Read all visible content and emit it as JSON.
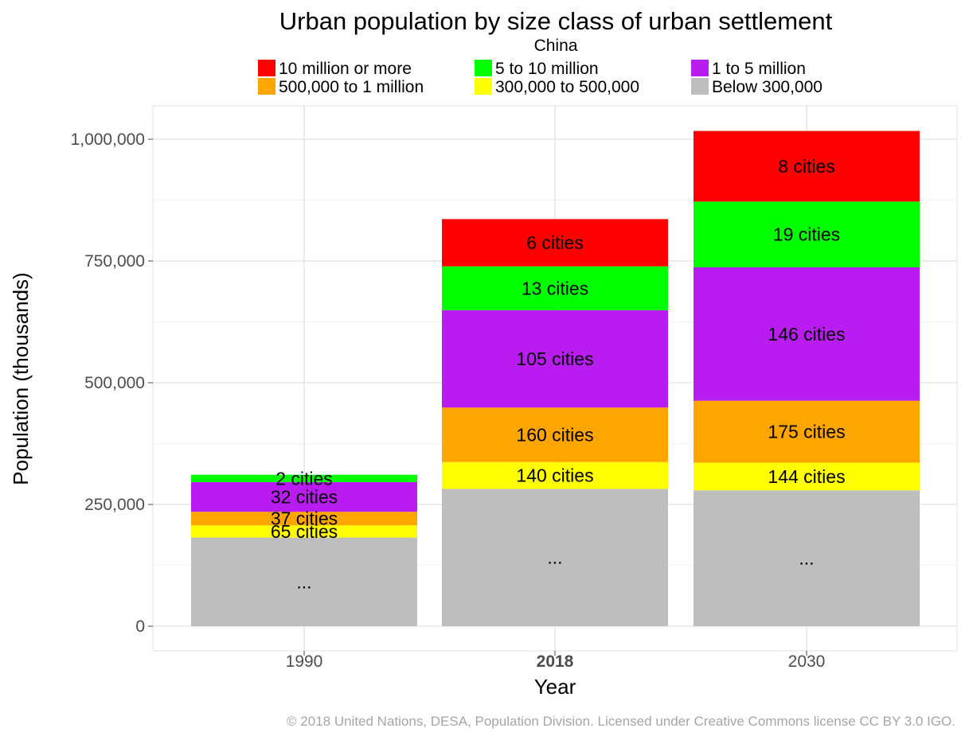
{
  "chart_data": {
    "type": "bar",
    "stacked": true,
    "title": "Urban population by size class of urban settlement",
    "subtitle": "China",
    "xlabel": "Year",
    "ylabel": "Population (thousands)",
    "ylim": [
      0,
      1050000
    ],
    "yticks": [
      0,
      250000,
      500000,
      750000,
      1000000
    ],
    "ytick_labels": [
      "0",
      "250,000",
      "500,000",
      "750,000",
      "1,000,000"
    ],
    "categories": [
      "1990",
      "2018",
      "2030"
    ],
    "highlight_category": "2018",
    "grid": true,
    "legend_position": "top",
    "series": [
      {
        "name": "Below 300,000",
        "color": "#bebebe",
        "values": [
          182000,
          282000,
          279000
        ],
        "labels": [
          "...",
          "...",
          "..."
        ]
      },
      {
        "name": "300,000 to 500,000",
        "color": "#ffff00",
        "values": [
          25000,
          55000,
          57000
        ],
        "labels": [
          "65 cities",
          "140 cities",
          "144 cities"
        ]
      },
      {
        "name": "500,000 to 1 million",
        "color": "#ffa500",
        "values": [
          28000,
          112000,
          127000
        ],
        "labels": [
          "37 cities",
          "160 cities",
          "175 cities"
        ]
      },
      {
        "name": "1 to 5 million",
        "color": "#b81cf0",
        "values": [
          61000,
          200000,
          274000
        ],
        "labels": [
          "32 cities",
          "105 cities",
          "146 cities"
        ]
      },
      {
        "name": "5 to 10 million",
        "color": "#00ff00",
        "values": [
          15000,
          90000,
          135000
        ],
        "labels": [
          "2 cities",
          "13 cities",
          "19 cities"
        ]
      },
      {
        "name": "10 million or more",
        "color": "#ff0000",
        "values": [
          0,
          97000,
          145000
        ],
        "labels": [
          "",
          "6 cities",
          "8 cities"
        ]
      }
    ],
    "legend_order": [
      "10 million or more",
      "5 to 10 million",
      "1 to 5 million",
      "500,000 to 1 million",
      "300,000 to 500,000",
      "Below 300,000"
    ]
  },
  "footer": "© 2018 United Nations, DESA, Population Division. Licensed under Creative Commons license CC BY 3.0 IGO."
}
